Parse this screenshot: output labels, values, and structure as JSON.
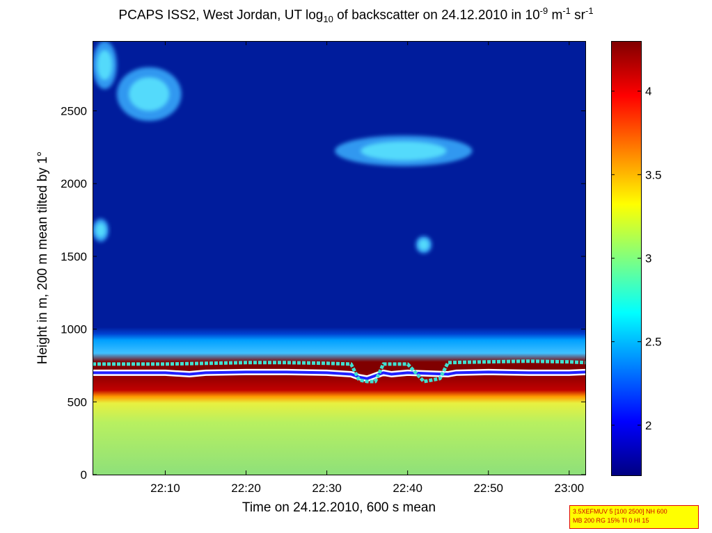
{
  "chart_data": {
    "type": "heatmap",
    "title": {
      "part1": "PCAPS ISS2, West Jordan, UT log",
      "sub1": "10",
      "part2": " of backscatter on 24.12.2010 in 10",
      "sup1": "-9",
      "part3": " m",
      "sup2": "-1",
      "part4": " sr",
      "sup3": "-1"
    },
    "xlabel": "Time on 24.12.2010, 600 s mean",
    "ylabel": "Height in m, 200 m mean tilted by 1°",
    "xlim": [
      "22:01",
      "23:02"
    ],
    "ylim": [
      0,
      2980
    ],
    "x_ticks": [
      "22:10",
      "22:20",
      "22:30",
      "22:40",
      "22:50",
      "23:00"
    ],
    "y_ticks": [
      0,
      500,
      1000,
      1500,
      2000,
      2500
    ],
    "colorbar": {
      "colormap": "jet",
      "range": [
        1.7,
        4.3
      ],
      "ticks": [
        "2",
        "2.5",
        "3",
        "3.5",
        "4"
      ]
    },
    "features": {
      "background_log_backscatter": 1.8,
      "aerosol_layer": {
        "bottom_m": 0,
        "top_m": 580,
        "value": 3.1
      },
      "max_backscatter_band": {
        "bottom_m": 560,
        "top_m": 760,
        "value": 4.2
      },
      "transition_top_m": 950,
      "cloud_patches": [
        {
          "time_start": "22:01",
          "time_end": "22:04",
          "height_bottom": 2650,
          "height_top": 2980
        },
        {
          "time_start": "22:04",
          "time_end": "22:12",
          "height_bottom": 2430,
          "height_top": 2800
        },
        {
          "time_start": "22:31",
          "time_end": "22:48",
          "height_bottom": 2120,
          "height_top": 2330
        },
        {
          "time_start": "22:41",
          "time_end": "22:43",
          "height_bottom": 1520,
          "height_top": 1640
        },
        {
          "time_start": "22:01",
          "time_end": "22:03",
          "height_bottom": 1600,
          "height_top": 1760
        }
      ]
    },
    "series": [
      {
        "name": "",
        "color": "#ffffff",
        "x": [
          "22:01",
          "22:05",
          "22:10",
          "22:13",
          "22:15",
          "22:20",
          "22:25",
          "22:30",
          "22:33",
          "22:34",
          "22:35",
          "22:36",
          "22:37",
          "22:38",
          "22:40",
          "22:45",
          "22:46",
          "22:50",
          "22:55",
          "23:00",
          "23:02"
        ],
        "y": [
          700,
          700,
          700,
          690,
          700,
          705,
          705,
          700,
          690,
          670,
          660,
          680,
          700,
          690,
          700,
          690,
          700,
          705,
          700,
          700,
          705
        ]
      },
      {
        "name": "",
        "color": "#40e0d0",
        "x": [
          "22:01",
          "22:05",
          "22:10",
          "22:15",
          "22:20",
          "22:25",
          "22:30",
          "22:33",
          "22:34",
          "22:35",
          "22:36",
          "22:37",
          "22:40",
          "22:42",
          "22:44",
          "22:45",
          "22:50",
          "22:55",
          "23:00",
          "23:02"
        ],
        "y": [
          760,
          760,
          760,
          765,
          770,
          770,
          765,
          760,
          650,
          640,
          640,
          760,
          760,
          640,
          660,
          770,
          775,
          780,
          775,
          770
        ]
      }
    ]
  },
  "info_box": {
    "line1": "3.5XEFMUV 5 [100 2500] NH 600",
    "line2": "MB 200 RG 15% TI 0 HI 15"
  }
}
